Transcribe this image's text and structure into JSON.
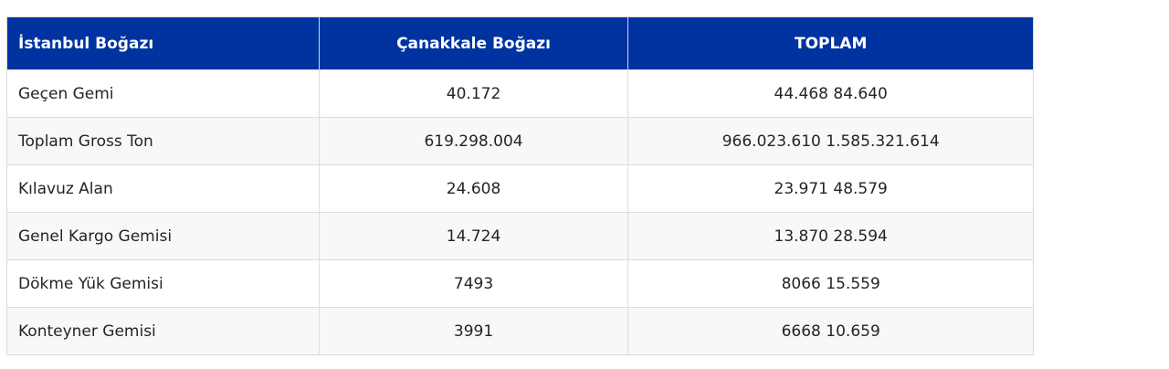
{
  "table": {
    "headers": [
      "İstanbul Boğazı",
      "Çanakkale Boğazı",
      "TOPLAM"
    ],
    "rows": [
      {
        "label": "Geçen Gemi",
        "canakkale": "40.172",
        "toplam": "44.468 84.640"
      },
      {
        "label": "Toplam Gross Ton",
        "canakkale": "619.298.004",
        "toplam": "966.023.610 1.585.321.614"
      },
      {
        "label": "Kılavuz Alan",
        "canakkale": "24.608",
        "toplam": "23.971 48.579"
      },
      {
        "label": "Genel Kargo Gemisi",
        "canakkale": "14.724",
        "toplam": "13.870 28.594"
      },
      {
        "label": "Dökme Yük Gemisi",
        "canakkale": "7493",
        "toplam": "8066 15.559"
      },
      {
        "label": "Konteyner Gemisi",
        "canakkale": "3991",
        "toplam": "6668 10.659"
      }
    ]
  },
  "colors": {
    "header_bg": "#0033a0",
    "header_text": "#ffffff",
    "row_alt_bg": "#f8f8f8",
    "border": "#dcdcdc"
  }
}
